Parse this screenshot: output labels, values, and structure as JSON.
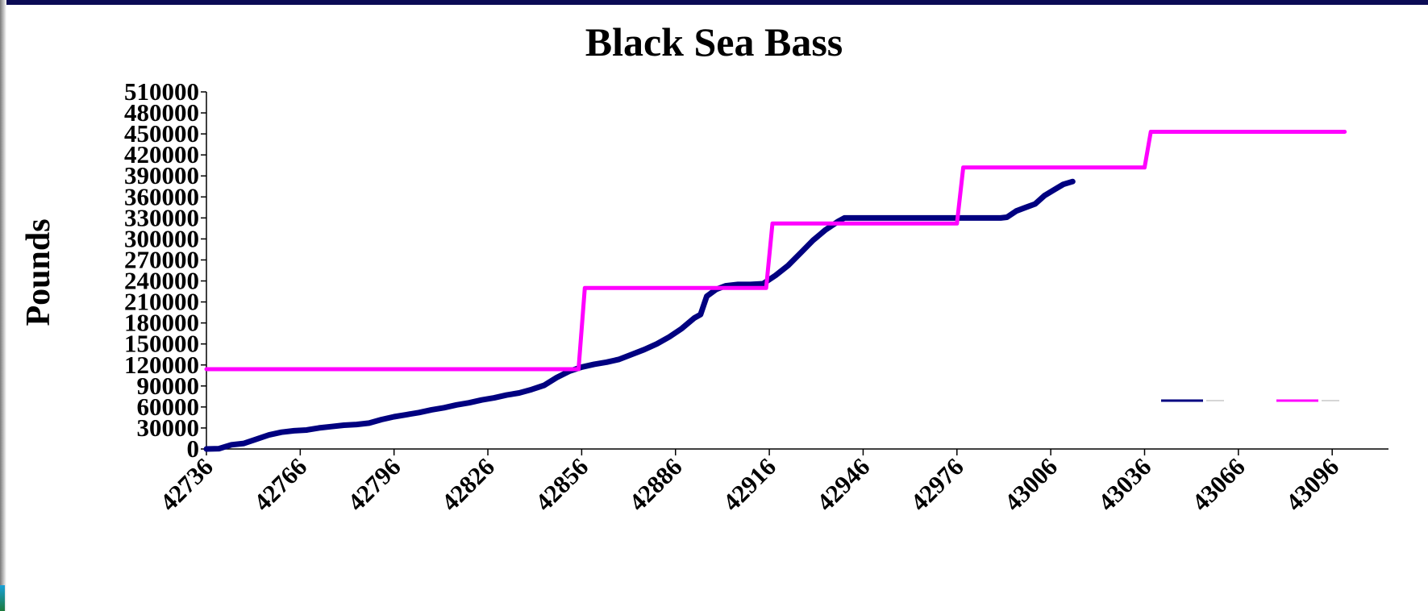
{
  "chart_data": {
    "type": "line",
    "title": "Black Sea Bass",
    "ylabel": "Pounds",
    "xlabel": "",
    "xlim": [
      42736,
      43114
    ],
    "ylim": [
      0,
      510000
    ],
    "xticks": [
      42736,
      42766,
      42796,
      42826,
      42856,
      42886,
      42916,
      42946,
      42976,
      43006,
      43036,
      43066,
      43096
    ],
    "yticks": [
      0,
      30000,
      60000,
      90000,
      120000,
      150000,
      180000,
      210000,
      240000,
      270000,
      300000,
      330000,
      360000,
      390000,
      420000,
      450000,
      480000,
      510000
    ],
    "grid": false,
    "legend_position": "lower-right",
    "series": [
      {
        "color": "#000080",
        "points": [
          [
            42736,
            0
          ],
          [
            42740,
            500
          ],
          [
            42744,
            6000
          ],
          [
            42748,
            8000
          ],
          [
            42752,
            14000
          ],
          [
            42756,
            20000
          ],
          [
            42760,
            24000
          ],
          [
            42764,
            26000
          ],
          [
            42768,
            27000
          ],
          [
            42772,
            30000
          ],
          [
            42776,
            32000
          ],
          [
            42780,
            34000
          ],
          [
            42784,
            35000
          ],
          [
            42788,
            37000
          ],
          [
            42792,
            42000
          ],
          [
            42796,
            46000
          ],
          [
            42800,
            49000
          ],
          [
            42804,
            52000
          ],
          [
            42808,
            56000
          ],
          [
            42812,
            59000
          ],
          [
            42816,
            63000
          ],
          [
            42820,
            66000
          ],
          [
            42824,
            70000
          ],
          [
            42828,
            73000
          ],
          [
            42832,
            77000
          ],
          [
            42836,
            80000
          ],
          [
            42840,
            85000
          ],
          [
            42844,
            91000
          ],
          [
            42848,
            102000
          ],
          [
            42852,
            111000
          ],
          [
            42856,
            117000
          ],
          [
            42860,
            121000
          ],
          [
            42864,
            124000
          ],
          [
            42868,
            128000
          ],
          [
            42872,
            135000
          ],
          [
            42876,
            142000
          ],
          [
            42880,
            150000
          ],
          [
            42884,
            160000
          ],
          [
            42888,
            172000
          ],
          [
            42892,
            187000
          ],
          [
            42894,
            192000
          ],
          [
            42896,
            218000
          ],
          [
            42899,
            228000
          ],
          [
            42902,
            233000
          ],
          [
            42906,
            235000
          ],
          [
            42910,
            235000
          ],
          [
            42914,
            236000
          ],
          [
            42918,
            248000
          ],
          [
            42922,
            262000
          ],
          [
            42926,
            280000
          ],
          [
            42930,
            298000
          ],
          [
            42934,
            313000
          ],
          [
            42938,
            325000
          ],
          [
            42940,
            330000
          ],
          [
            42950,
            330000
          ],
          [
            42960,
            330000
          ],
          [
            42970,
            330000
          ],
          [
            42980,
            330000
          ],
          [
            42990,
            330000
          ],
          [
            42992,
            331000
          ],
          [
            42995,
            340000
          ],
          [
            42998,
            345000
          ],
          [
            43001,
            350000
          ],
          [
            43004,
            362000
          ],
          [
            43007,
            370000
          ],
          [
            43010,
            378000
          ],
          [
            43013,
            382000
          ]
        ]
      },
      {
        "color": "#ff00ff",
        "points": [
          [
            42736,
            114000
          ],
          [
            42855,
            114000
          ],
          [
            42857,
            230000
          ],
          [
            42915,
            230000
          ],
          [
            42917,
            322000
          ],
          [
            42976,
            322000
          ],
          [
            42978,
            402000
          ],
          [
            43036,
            402000
          ],
          [
            43038,
            453000
          ],
          [
            43100,
            453000
          ]
        ]
      }
    ]
  }
}
